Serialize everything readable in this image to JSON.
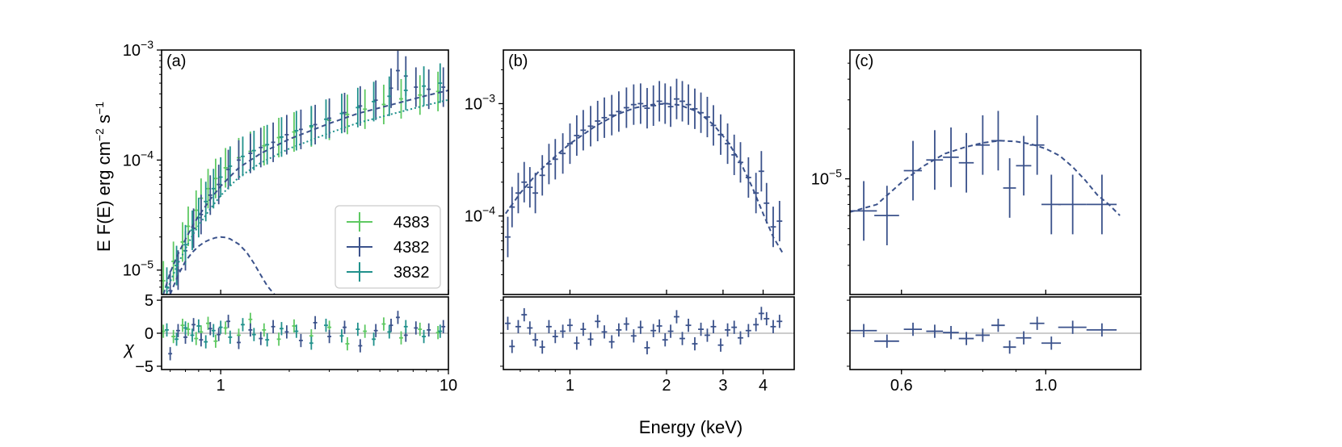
{
  "chart_data": {
    "type": "scatter",
    "shared": {
      "xlabel": "Energy (keV)",
      "ylabel_main": "E F(E) erg cm",
      "ylabel_exp1": "−2",
      "ylabel_mid": " s",
      "ylabel_exp2": "−1",
      "ylabel_resid": "χ",
      "colors": {
        "4383": "#5ec962",
        "4382": "#3b528b",
        "3832": "#21918c",
        "reference_line": "#bbbbbb"
      }
    },
    "panels": [
      {
        "id": "a",
        "label": "(a)",
        "xlim": [
          0.55,
          10
        ],
        "ylim": [
          6e-06,
          0.001
        ],
        "resid_ylim": [
          -5.5,
          5.5
        ],
        "xticks": [
          {
            "v": 1,
            "t": "1"
          },
          {
            "v": 10,
            "t": "10"
          }
        ],
        "yticks": [
          {
            "v": 1e-05,
            "b": "10",
            "e": "−5"
          },
          {
            "v": 0.0001,
            "b": "10",
            "e": "−4"
          },
          {
            "v": 0.001,
            "b": "10",
            "e": "−3"
          }
        ],
        "resid_yticks": [
          {
            "v": 5,
            "t": "5"
          },
          {
            "v": 0,
            "t": "0"
          },
          {
            "v": -5,
            "t": "−5"
          }
        ],
        "legend": [
          {
            "label": "4383",
            "color": "#5ec962"
          },
          {
            "label": "4382",
            "color": "#3b528b"
          },
          {
            "label": "3832",
            "color": "#21918c"
          }
        ],
        "series": [
          {
            "name": "4383",
            "color": "#5ec962",
            "x": [
              0.56,
              0.62,
              0.68,
              0.72,
              0.78,
              0.82,
              0.88,
              0.95,
              1.05,
              1.2,
              1.35,
              1.55,
              1.8,
              2.1,
              2.5,
              3.0,
              3.6,
              4.3,
              5.2,
              6.2,
              7.5,
              9.0
            ],
            "y": [
              8e-06,
              1.2e-05,
              1.8e-05,
              2.5e-05,
              3.5e-05,
              4.5e-05,
              5.5e-05,
              6.8e-05,
              8.5e-05,
              0.000105,
              0.00012,
              0.000135,
              0.00016,
              0.00018,
              0.0002,
              0.00023,
              0.00026,
              0.00029,
              0.00032,
              0.00036,
              0.00039,
              0.00042
            ],
            "resid": [
              0.3,
              -0.5,
              1.2,
              0.6,
              -0.8,
              0.2,
              1.5,
              -1.2,
              0.8,
              -0.3,
              2.1,
              0.5,
              -0.9,
              1.1,
              -0.4,
              0.9,
              -1.6,
              0.3,
              1.4,
              -0.7,
              0.6,
              0.1
            ]
          },
          {
            "name": "4382",
            "color": "#3b528b",
            "x": [
              0.6,
              0.65,
              0.7,
              0.76,
              0.82,
              0.9,
              0.98,
              1.08,
              1.2,
              1.35,
              1.5,
              1.7,
              1.95,
              2.25,
              2.6,
              3.0,
              3.5,
              4.1,
              4.8,
              5.6,
              6.0,
              6.5,
              7.2,
              8.2,
              9.5
            ],
            "y": [
              6.5e-06,
              1e-05,
              1.5e-05,
              2.4e-05,
              3.2e-05,
              4.8e-05,
              6e-05,
              8.2e-05,
              0.0001,
              0.000115,
              0.00013,
              0.000145,
              0.00017,
              0.00019,
              0.00021,
              0.00024,
              0.00027,
              0.00031,
              0.00035,
              0.00045,
              0.00065,
              0.00058,
              0.00046,
              0.00044,
              0.00046
            ],
            "resid": [
              -3.1,
              0.4,
              -0.6,
              1.3,
              -1.0,
              0.7,
              -0.2,
              1.8,
              -1.4,
              0.5,
              -0.8,
              1.0,
              0.2,
              -1.1,
              1.6,
              -0.5,
              0.9,
              -1.9,
              0.4,
              1.2,
              2.4,
              -0.3,
              0.8,
              0.5,
              1.0
            ]
          },
          {
            "name": "3832",
            "color": "#21918c",
            "x": [
              0.58,
              0.64,
              0.7,
              0.75,
              0.8,
              0.86,
              0.93,
              1.0,
              1.1,
              1.25,
              1.4,
              1.6,
              1.85,
              2.15,
              2.5,
              2.9,
              3.4,
              4.0,
              4.7,
              5.5,
              6.5,
              7.8,
              9.2
            ],
            "y": [
              7e-06,
              1.1e-05,
              1.7e-05,
              2.3e-05,
              3e-05,
              4.2e-05,
              5.5e-05,
              7e-05,
              8.8e-05,
              0.000108,
              0.000122,
              0.000138,
              0.000162,
              0.000185,
              0.000205,
              0.000235,
              0.000265,
              0.0003,
              0.00034,
              0.00038,
              0.00043,
              0.00047,
              0.0005
            ],
            "resid": [
              0.5,
              -0.9,
              0.8,
              -0.3,
              1.1,
              -1.3,
              0.4,
              0.9,
              -0.6,
              1.3,
              -0.2,
              -1.0,
              0.7,
              0.3,
              -1.5,
              1.2,
              -0.4,
              0.6,
              -0.9,
              0.2,
              1.0,
              -0.5,
              0.3
            ]
          }
        ],
        "model": {
          "total_x": [
            0.56,
            0.6,
            0.65,
            0.7,
            0.75,
            0.8,
            0.9,
            1.0,
            1.2,
            1.5,
            2.0,
            3.0,
            4.0,
            6.0,
            8.0,
            10.0
          ],
          "total_y": [
            6e-06,
            9.5e-06,
            1.4e-05,
            1.9e-05,
            2.5e-05,
            3.1e-05,
            4.4e-05,
            5.8e-05,
            8.5e-05,
            0.000115,
            0.000155,
            0.000215,
            0.000265,
            0.00033,
            0.000385,
            0.00043
          ],
          "bump_x": [
            0.6,
            0.65,
            0.7,
            0.75,
            0.8,
            0.85,
            0.9,
            0.95,
            1.0,
            1.05,
            1.1,
            1.2,
            1.3,
            1.4,
            1.5,
            1.6,
            1.7,
            1.75
          ],
          "bump_y": [
            6e-06,
            9e-06,
            1.2e-05,
            1.45e-05,
            1.65e-05,
            1.8e-05,
            1.9e-05,
            1.97e-05,
            2e-05,
            1.98e-05,
            1.92e-05,
            1.72e-05,
            1.45e-05,
            1.15e-05,
            9e-06,
            7.2e-06,
            6.2e-06,
            5.8e-06
          ]
        }
      },
      {
        "id": "b",
        "label": "(b)",
        "xlim": [
          0.62,
          5.0
        ],
        "ylim": [
          2e-05,
          0.003
        ],
        "resid_ylim": [
          -5.5,
          5.5
        ],
        "xticks": [
          {
            "v": 1,
            "t": "1"
          },
          {
            "v": 2,
            "t": "2"
          },
          {
            "v": 3,
            "t": "3"
          },
          {
            "v": 4,
            "t": "4"
          }
        ],
        "yticks": [
          {
            "v": 0.0001,
            "b": "10",
            "e": "−4"
          },
          {
            "v": 0.001,
            "b": "10",
            "e": "−3"
          }
        ],
        "series": [
          {
            "name": "4382",
            "color": "#3b528b",
            "x": [
              0.64,
              0.66,
              0.69,
              0.72,
              0.75,
              0.78,
              0.82,
              0.86,
              0.9,
              0.95,
              1.0,
              1.05,
              1.1,
              1.16,
              1.22,
              1.28,
              1.35,
              1.42,
              1.5,
              1.58,
              1.66,
              1.74,
              1.82,
              1.9,
              1.98,
              2.06,
              2.15,
              2.24,
              2.34,
              2.45,
              2.56,
              2.68,
              2.8,
              2.95,
              3.1,
              3.25,
              3.4,
              3.6,
              3.8,
              3.95,
              4.1,
              4.3,
              4.5
            ],
            "y": [
              6.5e-05,
              0.00012,
              0.00016,
              0.0002,
              0.00018,
              0.00016,
              0.00023,
              0.00029,
              0.00032,
              0.00036,
              0.00044,
              0.00052,
              0.00058,
              0.00063,
              0.0007,
              0.00075,
              0.00079,
              0.00085,
              0.00092,
              0.00098,
              0.001,
              0.00091,
              0.00096,
              0.00105,
              0.001,
              0.00094,
              0.0011,
              0.00105,
              0.00098,
              0.0009,
              0.00083,
              0.00076,
              0.00064,
              0.00053,
              0.00044,
              0.00035,
              0.0003,
              0.00022,
              0.00016,
              0.00025,
              0.00013,
              8e-05,
              9e-05
            ],
            "resid": [
              1.5,
              -2.0,
              1.0,
              2.8,
              0.8,
              -1.0,
              -2.1,
              1.0,
              -0.5,
              0.3,
              1.2,
              -1.5,
              0.6,
              -0.9,
              1.8,
              0.2,
              -1.3,
              0.5,
              1.4,
              -0.4,
              0.9,
              -2.2,
              0.4,
              1.1,
              -1.0,
              0.3,
              2.5,
              -0.8,
              1.2,
              -1.6,
              0.6,
              -0.3,
              1.0,
              -1.8,
              0.5,
              0.9,
              -0.7,
              0.4,
              1.3,
              3.0,
              2.2,
              1.0,
              1.8
            ]
          }
        ],
        "model": {
          "total_x": [
            0.63,
            0.7,
            0.8,
            0.9,
            1.0,
            1.2,
            1.4,
            1.6,
            1.8,
            2.0,
            2.2,
            2.5,
            2.8,
            3.1,
            3.4,
            3.7,
            4.0,
            4.3,
            4.6
          ],
          "total_y": [
            0.000105,
            0.00016,
            0.00025,
            0.00034,
            0.00044,
            0.00063,
            0.0008,
            0.00092,
            0.00098,
            0.001,
            0.00097,
            0.00085,
            0.00065,
            0.00046,
            0.0003,
            0.00018,
            0.000105,
            6.5e-05,
            4.7e-05
          ]
        }
      },
      {
        "id": "c",
        "label": "(c)",
        "xlim": [
          0.5,
          1.4
        ],
        "ylim": [
          2e-06,
          6e-05
        ],
        "resid_ylim": [
          -5.5,
          5.5
        ],
        "xticks": [
          {
            "v": 0.6,
            "t": "0.6"
          },
          {
            "v": 1.0,
            "t": "1.0"
          }
        ],
        "yticks": [
          {
            "v": 1e-05,
            "b": "10",
            "e": "−5"
          }
        ],
        "series": [
          {
            "name": "4382",
            "color": "#3b528b",
            "x": [
              0.525,
              0.57,
              0.625,
              0.675,
              0.715,
              0.755,
              0.8,
              0.845,
              0.88,
              0.925,
              0.97,
              1.02,
              1.1,
              1.22
            ],
            "y": [
              6.4e-06,
              6e-06,
              1.12e-05,
              1.3e-05,
              1.35e-05,
              1.25e-05,
              1.6e-05,
              1.7e-05,
              8.8e-06,
              1.2e-05,
              1.6e-05,
              7e-06,
              7e-06,
              7e-06
            ],
            "xerr": [
              0.025,
              0.025,
              0.02,
              0.02,
              0.02,
              0.02,
              0.02,
              0.02,
              0.02,
              0.025,
              0.025,
              0.035,
              0.055,
              0.065
            ],
            "resid": [
              0.4,
              -1.2,
              0.6,
              0.3,
              0.1,
              -0.8,
              -0.3,
              1.2,
              -2.1,
              -0.7,
              1.5,
              -1.5,
              0.9,
              0.5
            ]
          }
        ],
        "model": {
          "total_x": [
            0.5,
            0.55,
            0.6,
            0.65,
            0.7,
            0.75,
            0.8,
            0.85,
            0.9,
            0.95,
            1.0,
            1.05,
            1.1,
            1.15,
            1.2,
            1.25,
            1.3
          ],
          "total_y": [
            6.3e-06,
            7e-06,
            9.5e-06,
            1.2e-05,
            1.42e-05,
            1.55e-05,
            1.65e-05,
            1.7e-05,
            1.68e-05,
            1.62e-05,
            1.52e-05,
            1.38e-05,
            1.18e-05,
            9.8e-06,
            8e-06,
            7e-06,
            6e-06
          ]
        }
      }
    ]
  }
}
